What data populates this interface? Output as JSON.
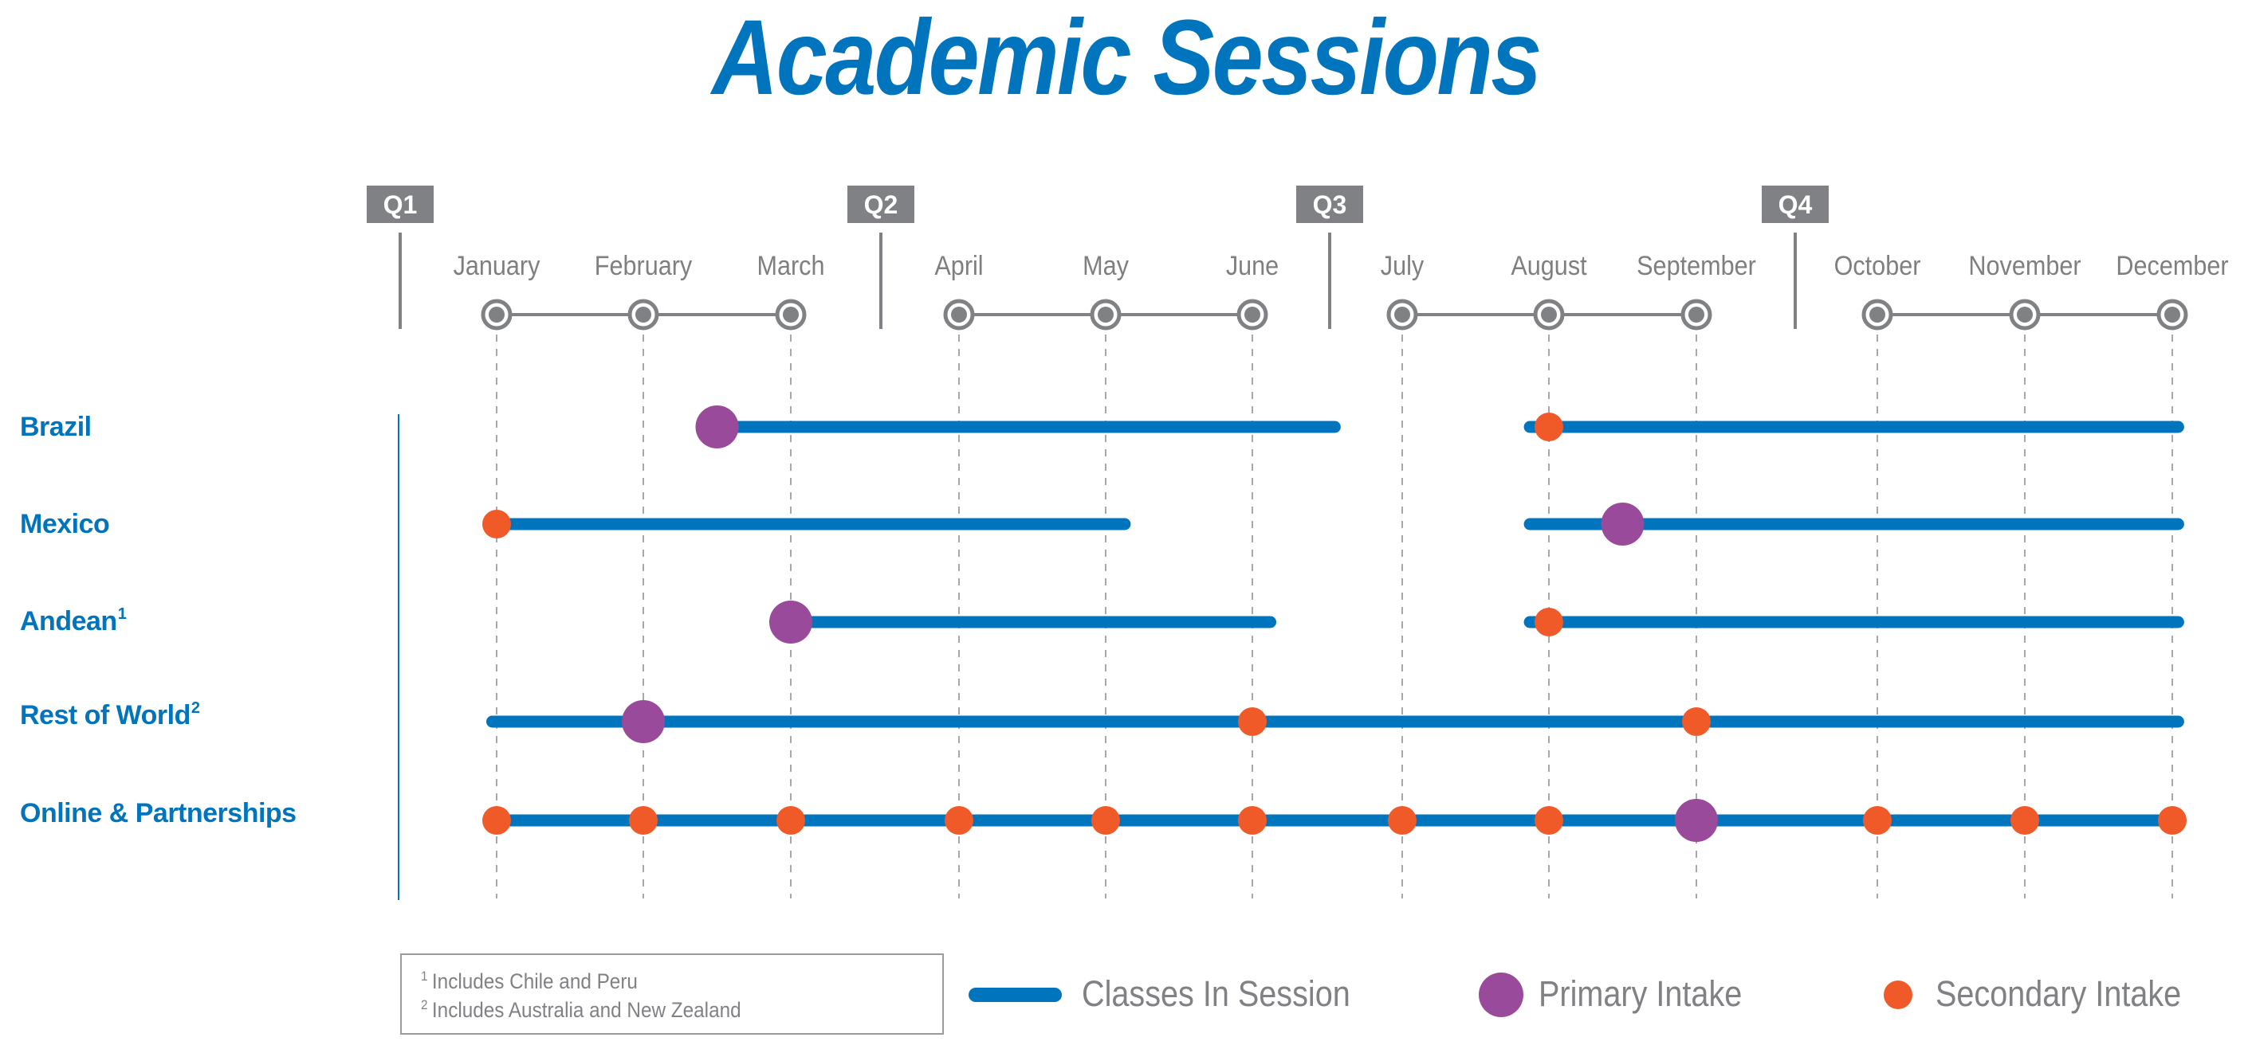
{
  "title": "Academic Sessions",
  "colors": {
    "title": "#0075BD",
    "session_bar": "#0075BD",
    "primary_intake": "#9A4A9B",
    "secondary_intake": "#F05A28",
    "axis_gray": "#808184",
    "row_label": "#0075BD"
  },
  "quarters": [
    {
      "label": "Q1"
    },
    {
      "label": "Q2"
    },
    {
      "label": "Q3"
    },
    {
      "label": "Q4"
    }
  ],
  "months": [
    {
      "label": "January"
    },
    {
      "label": "February"
    },
    {
      "label": "March"
    },
    {
      "label": "April"
    },
    {
      "label": "May"
    },
    {
      "label": "June"
    },
    {
      "label": "July"
    },
    {
      "label": "August"
    },
    {
      "label": "September"
    },
    {
      "label": "October"
    },
    {
      "label": "November"
    },
    {
      "label": "December"
    }
  ],
  "rows": [
    {
      "label": "Brazil",
      "sup": ""
    },
    {
      "label": "Mexico",
      "sup": ""
    },
    {
      "label": "Andean",
      "sup": "1"
    },
    {
      "label": "Rest of World",
      "sup": "2"
    },
    {
      "label": "Online & Partnerships",
      "sup": ""
    }
  ],
  "footnotes": [
    {
      "mark": "1",
      "text": "Includes Chile and Peru"
    },
    {
      "mark": "2",
      "text": "Includes Australia and New Zealand"
    }
  ],
  "legend": {
    "session": "Classes In Session",
    "primary": "Primary Intake",
    "secondary": "Secondary Intake"
  },
  "chart_data": {
    "type": "timeline",
    "title": "Academic Sessions",
    "xlabel": "",
    "ylabel": "",
    "x_axis": {
      "categories": [
        "January",
        "February",
        "March",
        "April",
        "May",
        "June",
        "July",
        "August",
        "September",
        "October",
        "November",
        "December"
      ],
      "groups": [
        {
          "label": "Q1",
          "months": [
            "January",
            "February",
            "March"
          ]
        },
        {
          "label": "Q2",
          "months": [
            "April",
            "May",
            "June"
          ]
        },
        {
          "label": "Q3",
          "months": [
            "July",
            "August",
            "September"
          ]
        },
        {
          "label": "Q4",
          "months": [
            "October",
            "November",
            "December"
          ]
        }
      ],
      "note": "month index 0 = January, 11 = December; fractional values are positions between month markers"
    },
    "legend": [
      "Classes In Session",
      "Primary Intake",
      "Secondary Intake"
    ],
    "series": [
      {
        "name": "Brazil",
        "sessions": [
          [
            1.5,
            5.55
          ],
          [
            6.87,
            11.04
          ]
        ],
        "primary_intake": [
          1.5
        ],
        "secondary_intake": [
          7
        ]
      },
      {
        "name": "Mexico",
        "sessions": [
          [
            0,
            4.13
          ],
          [
            6.87,
            11.04
          ]
        ],
        "primary_intake": [
          7.5
        ],
        "secondary_intake": [
          0
        ]
      },
      {
        "name": "Andean¹",
        "sessions": [
          [
            2,
            5.12
          ],
          [
            6.87,
            11.04
          ]
        ],
        "primary_intake": [
          2
        ],
        "secondary_intake": [
          7
        ]
      },
      {
        "name": "Rest of World²",
        "sessions": [
          [
            -0.03,
            11.04
          ]
        ],
        "primary_intake": [
          1
        ],
        "secondary_intake": [
          5,
          8
        ]
      },
      {
        "name": "Online & Partnerships",
        "sessions": [
          [
            0,
            11
          ]
        ],
        "primary_intake": [
          8
        ],
        "secondary_intake": [
          0,
          1,
          2,
          3,
          4,
          5,
          6,
          7,
          9,
          10,
          11
        ]
      }
    ]
  }
}
